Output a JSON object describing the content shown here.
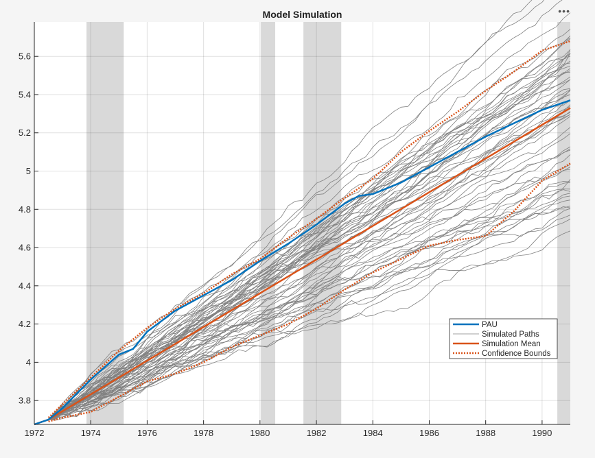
{
  "toolbar": {
    "menu_icon": "more-horizontal-icon",
    "menu_label": "•••"
  },
  "chart_data": {
    "type": "line",
    "title": "Model Simulation",
    "xlabel": "",
    "ylabel": "",
    "xlim": [
      1972,
      1991
    ],
    "ylim": [
      3.675,
      5.78
    ],
    "xticks": [
      1972,
      1974,
      1976,
      1978,
      1980,
      1982,
      1984,
      1986,
      1988,
      1990
    ],
    "yticks": [
      3.8,
      4,
      4.2,
      4.4,
      4.6,
      4.8,
      5,
      5.2,
      5.4,
      5.6
    ],
    "grid": true,
    "legend_position": "lower-right",
    "shaded_periods": [
      [
        1973.85,
        1975.17
      ],
      [
        1980.03,
        1980.54
      ],
      [
        1981.54,
        1982.88
      ],
      [
        1990.54,
        1991
      ]
    ],
    "colors": {
      "pau": "#0072BD",
      "paths": "#808080",
      "mean": "#D95319",
      "bounds": "#D95319",
      "shade": "#d9d9d9"
    },
    "series": [
      {
        "name": "PAU",
        "style": "solid-thick",
        "x": [
          1972,
          1972.5,
          1973,
          1974,
          1975,
          1975.5,
          1976,
          1977,
          1978,
          1979,
          1980,
          1981,
          1982,
          1983,
          1983.5,
          1984,
          1985,
          1986,
          1987,
          1988,
          1989,
          1990,
          1991
        ],
        "y": [
          3.675,
          3.7,
          3.76,
          3.91,
          4.04,
          4.07,
          4.16,
          4.27,
          4.35,
          4.43,
          4.53,
          4.62,
          4.72,
          4.83,
          4.87,
          4.88,
          4.94,
          5.02,
          5.1,
          5.18,
          5.25,
          5.32,
          5.37
        ]
      },
      {
        "name": "Simulated Paths",
        "style": "thin",
        "count": 60,
        "start": [
          1972.5,
          3.7
        ]
      },
      {
        "name": "Simulation Mean",
        "style": "solid-thick",
        "x": [
          1972,
          1972.5,
          1991
        ],
        "y": [
          3.675,
          3.7,
          5.33
        ]
      },
      {
        "name": "Confidence Bounds",
        "style": "dotted",
        "upper": {
          "x": [
            1972.5,
            1973,
            1974,
            1975,
            1976,
            1977,
            1978,
            1979,
            1980,
            1981,
            1982,
            1983,
            1984,
            1985,
            1986,
            1987,
            1988,
            1989,
            1990,
            1991
          ],
          "y": [
            3.71,
            3.78,
            3.92,
            4.06,
            4.18,
            4.28,
            4.36,
            4.46,
            4.54,
            4.65,
            4.75,
            4.86,
            4.96,
            5.1,
            5.21,
            5.31,
            5.42,
            5.52,
            5.63,
            5.68
          ]
        },
        "lower": {
          "x": [
            1972.5,
            1973,
            1974,
            1975,
            1976,
            1977,
            1978,
            1979,
            1980,
            1981,
            1982,
            1983,
            1984,
            1985,
            1986,
            1987,
            1988,
            1989,
            1990,
            1991
          ],
          "y": [
            3.69,
            3.71,
            3.74,
            3.82,
            3.9,
            3.94,
            4.0,
            4.08,
            4.14,
            4.2,
            4.28,
            4.38,
            4.47,
            4.54,
            4.61,
            4.64,
            4.66,
            4.79,
            4.95,
            5.04
          ]
        }
      }
    ]
  }
}
